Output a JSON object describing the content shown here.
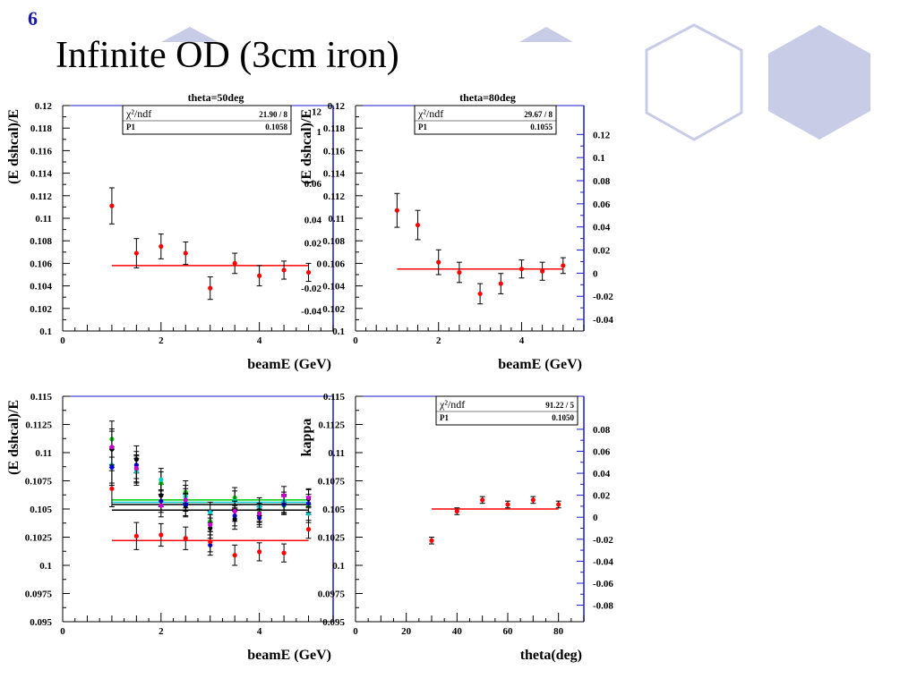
{
  "slide": {
    "number": "6",
    "title": "Infinite OD (3cm iron)"
  },
  "colors": {
    "frame_right": "#1a1acc",
    "fit_line": "#ff0000",
    "point": "#ff0000",
    "deco_hex": "#c8cce6"
  },
  "chart_data": [
    {
      "id": "p1",
      "type": "scatter",
      "title": "theta=50deg",
      "xlabel": "beamE (GeV)",
      "ylabel": "(E dshcal)/E",
      "xlim": [
        0,
        5.5
      ],
      "ylim": [
        0.1,
        0.12
      ],
      "xticks": [
        0,
        2,
        4
      ],
      "yticks": [
        0.1,
        0.102,
        0.104,
        0.106,
        0.108,
        0.11,
        0.112,
        0.114,
        0.116,
        0.118,
        0.12
      ],
      "ytick_labels": [
        "0.1",
        "0.102",
        "0.104",
        "0.106",
        "0.108",
        "0.11",
        "0.112",
        "0.114",
        "0.116",
        "0.118",
        "0.12"
      ],
      "stats": [
        {
          "label": "χ²/ndf",
          "value": "21.90  /  8"
        },
        {
          "label": "P1",
          "value": "0.1058"
        }
      ],
      "fit": {
        "y": 0.1058,
        "x": [
          1.0,
          5.0
        ]
      },
      "series": [
        {
          "color": "#ff0000",
          "x": [
            1.0,
            1.5,
            2.0,
            2.5,
            3.0,
            3.5,
            4.0,
            4.5,
            5.0
          ],
          "y": [
            0.1111,
            0.1069,
            0.1075,
            0.1069,
            0.1038,
            0.106,
            0.1049,
            0.1054,
            0.1052
          ],
          "err": [
            0.0016,
            0.0013,
            0.0011,
            0.001,
            0.001,
            0.0009,
            0.0009,
            0.0008,
            0.0008
          ]
        }
      ]
    },
    {
      "id": "p2",
      "type": "scatter",
      "title": "theta=80deg",
      "xlabel": "beamE (GeV)",
      "ylabel": "(E dshcal)/E",
      "xlim": [
        0,
        5.5
      ],
      "ylim": [
        0.1,
        0.12
      ],
      "xticks": [
        0,
        2,
        4
      ],
      "yticks": [
        0.1,
        0.102,
        0.104,
        0.106,
        0.108,
        0.11,
        0.112,
        0.114,
        0.116,
        0.118,
        0.12
      ],
      "ytick_labels": [
        "0.1",
        "0.102",
        "0.104",
        "0.106",
        "0.108",
        "0.11",
        "0.112",
        "0.114",
        "0.116",
        "0.118",
        "0.12"
      ],
      "ghost_left_labels": [
        {
          "y": 0.1195,
          "text": "12"
        },
        {
          "y": 0.1177,
          "text": "1"
        },
        {
          "y": 0.1131,
          "text": "0.06"
        },
        {
          "y": 0.1099,
          "text": "0.04"
        },
        {
          "y": 0.1078,
          "text": "0.02"
        },
        {
          "y": 0.106,
          "text": "0"
        },
        {
          "y": 0.1038,
          "text": "-0.02"
        },
        {
          "y": 0.1018,
          "text": "-0.04"
        }
      ],
      "right_axis": {
        "ylim": [
          -0.05,
          0.145
        ],
        "ticks": [
          0.12,
          0.1,
          0.08,
          0.06,
          0.04,
          0.02,
          0,
          -0.02,
          -0.04
        ],
        "tick_labels": [
          "0.12",
          "0.1",
          "0.08",
          "0.06",
          "0.04",
          "0.02",
          "0",
          "-0.02",
          "-0.04"
        ]
      },
      "stats": [
        {
          "label": "χ²/ndf",
          "value": "29.67  /  8"
        },
        {
          "label": "P1",
          "value": "0.1055"
        }
      ],
      "fit": {
        "y": 0.1055,
        "x": [
          1.0,
          5.0
        ]
      },
      "series": [
        {
          "color": "#ff0000",
          "x": [
            1.0,
            1.5,
            2.0,
            2.5,
            3.0,
            3.5,
            4.0,
            4.5,
            5.0
          ],
          "y": [
            0.1107,
            0.1094,
            0.1061,
            0.1052,
            0.1033,
            0.1042,
            0.1055,
            0.1053,
            0.1058
          ],
          "err": [
            0.0015,
            0.0013,
            0.0011,
            0.0009,
            0.0009,
            0.0009,
            0.0008,
            0.0008,
            0.0007
          ]
        }
      ]
    },
    {
      "id": "p3",
      "type": "scatter",
      "title": "",
      "xlabel": "beamE (GeV)",
      "ylabel": "(E dshcal)/E",
      "xlim": [
        0,
        5.5
      ],
      "ylim": [
        0.095,
        0.115
      ],
      "xticks": [
        0,
        2,
        4
      ],
      "yticks": [
        0.095,
        0.0975,
        0.1,
        0.1025,
        0.105,
        0.1075,
        0.11,
        0.1125,
        0.115
      ],
      "ytick_labels": [
        "0.095",
        "0.0975",
        "0.1",
        "0.1025",
        "0.105",
        "0.1075",
        "0.11",
        "0.1125",
        "0.115"
      ],
      "fits": [
        {
          "y": 0.1058,
          "color": "#00cc00",
          "x": [
            1.0,
            5.0
          ]
        },
        {
          "y": 0.1056,
          "color": "#00cccc",
          "x": [
            1.0,
            5.0
          ]
        },
        {
          "y": 0.1054,
          "color": "#000000",
          "x": [
            1.0,
            5.0
          ]
        },
        {
          "y": 0.1049,
          "color": "#000000",
          "x": [
            1.0,
            5.0
          ]
        },
        {
          "y": 0.1022,
          "color": "#ff0000",
          "x": [
            1.0,
            5.0
          ]
        }
      ],
      "series": [
        {
          "color": "#000000",
          "x": [
            1.0,
            1.5,
            2.0,
            2.5,
            3.0,
            3.5,
            4.0,
            4.5,
            5.0
          ],
          "y": [
            0.1103,
            0.1094,
            0.1062,
            0.1053,
            0.1033,
            0.1041,
            0.1044,
            0.1055,
            0.1059
          ],
          "err": [
            0.0016,
            0.0012,
            0.001,
            0.001,
            0.0009,
            0.0009,
            0.0008,
            0.0008,
            0.0008
          ]
        },
        {
          "color": "#00cc00",
          "x": [
            1.0,
            1.5,
            2.0,
            2.5,
            3.0,
            3.5,
            4.0,
            4.5,
            5.0
          ],
          "y": [
            0.1112,
            0.1085,
            0.1073,
            0.1065,
            0.1039,
            0.106,
            0.1047,
            0.1053,
            0.1053
          ],
          "err": [
            0.0016,
            0.0012,
            0.001,
            0.001,
            0.0009,
            0.0009,
            0.0008,
            0.0008,
            0.0008
          ]
        },
        {
          "color": "#00cccc",
          "x": [
            1.0,
            1.5,
            2.0,
            2.5,
            3.0,
            3.5,
            4.0,
            4.5,
            5.0
          ],
          "y": [
            0.1089,
            0.1083,
            0.1076,
            0.1061,
            0.1047,
            0.1057,
            0.1052,
            0.1057,
            0.1046
          ],
          "err": [
            0.0016,
            0.0012,
            0.001,
            0.001,
            0.0009,
            0.0009,
            0.0008,
            0.0008,
            0.0008
          ]
        },
        {
          "color": "#0000ff",
          "x": [
            1.0,
            1.5,
            2.0,
            2.5,
            3.0,
            3.5,
            4.0,
            4.5,
            5.0
          ],
          "y": [
            0.1087,
            0.1089,
            0.1057,
            0.1054,
            0.1018,
            0.1044,
            0.1042,
            0.1054,
            0.1055
          ],
          "err": [
            0.0016,
            0.0012,
            0.001,
            0.001,
            0.0009,
            0.0009,
            0.0008,
            0.0008,
            0.0008
          ]
        },
        {
          "color": "#cc00cc",
          "x": [
            1.0,
            1.5,
            2.0,
            2.5,
            3.0,
            3.5,
            4.0,
            4.5,
            5.0
          ],
          "y": [
            0.1105,
            0.1086,
            0.1053,
            0.1058,
            0.1036,
            0.1048,
            0.1046,
            0.1062,
            0.106
          ],
          "err": [
            0.0016,
            0.0012,
            0.001,
            0.001,
            0.0009,
            0.0009,
            0.0008,
            0.0008,
            0.0008
          ]
        },
        {
          "color": "#ff0000",
          "x": [
            1.0,
            1.5,
            2.0,
            2.5,
            3.0,
            3.5,
            4.0,
            4.5,
            5.0
          ],
          "y": [
            0.1068,
            0.1026,
            0.1027,
            0.1024,
            0.1021,
            0.1009,
            0.1012,
            0.1011,
            0.1032
          ],
          "err": [
            0.0016,
            0.0012,
            0.001,
            0.001,
            0.0009,
            0.0009,
            0.0008,
            0.0008,
            0.0008
          ]
        }
      ]
    },
    {
      "id": "p4",
      "type": "scatter",
      "title": "",
      "xlabel": "theta(deg)",
      "ylabel": "kappa",
      "xlim": [
        0,
        90
      ],
      "ylim": [
        0.095,
        0.115
      ],
      "xticks": [
        0,
        20,
        40,
        60,
        80
      ],
      "yticks": [
        0.095,
        0.0975,
        0.1,
        0.1025,
        0.105,
        0.1075,
        0.11,
        0.1125,
        0.115
      ],
      "ytick_labels": [
        "0.095",
        "0.0975",
        "0.1",
        "0.1025",
        "0.105",
        "0.1075",
        "0.11",
        "0.1125",
        "0.115"
      ],
      "right_axis": {
        "ylim": [
          -0.095,
          0.11
        ],
        "ticks": [
          0.08,
          0.06,
          0.04,
          0.02,
          0,
          -0.02,
          -0.04,
          -0.06,
          -0.08
        ],
        "tick_labels": [
          "0.08",
          "0.06",
          "0.04",
          "0.02",
          "0",
          "-0.02",
          "-0.04",
          "-0.06",
          "-0.08"
        ]
      },
      "stats": [
        {
          "label": "χ²/ndf",
          "value": "91.22  /  5"
        },
        {
          "label": "P1",
          "value": "0.1050"
        }
      ],
      "fit": {
        "y": 0.105,
        "x": [
          30,
          80
        ]
      },
      "series": [
        {
          "color": "#ff0000",
          "x": [
            30,
            40,
            50,
            60,
            70,
            80
          ],
          "y": [
            0.1022,
            0.1048,
            0.1058,
            0.1054,
            0.1058,
            0.1054
          ],
          "err": [
            0.0003,
            0.0003,
            0.0003,
            0.0003,
            0.0003,
            0.0003
          ]
        }
      ]
    }
  ]
}
